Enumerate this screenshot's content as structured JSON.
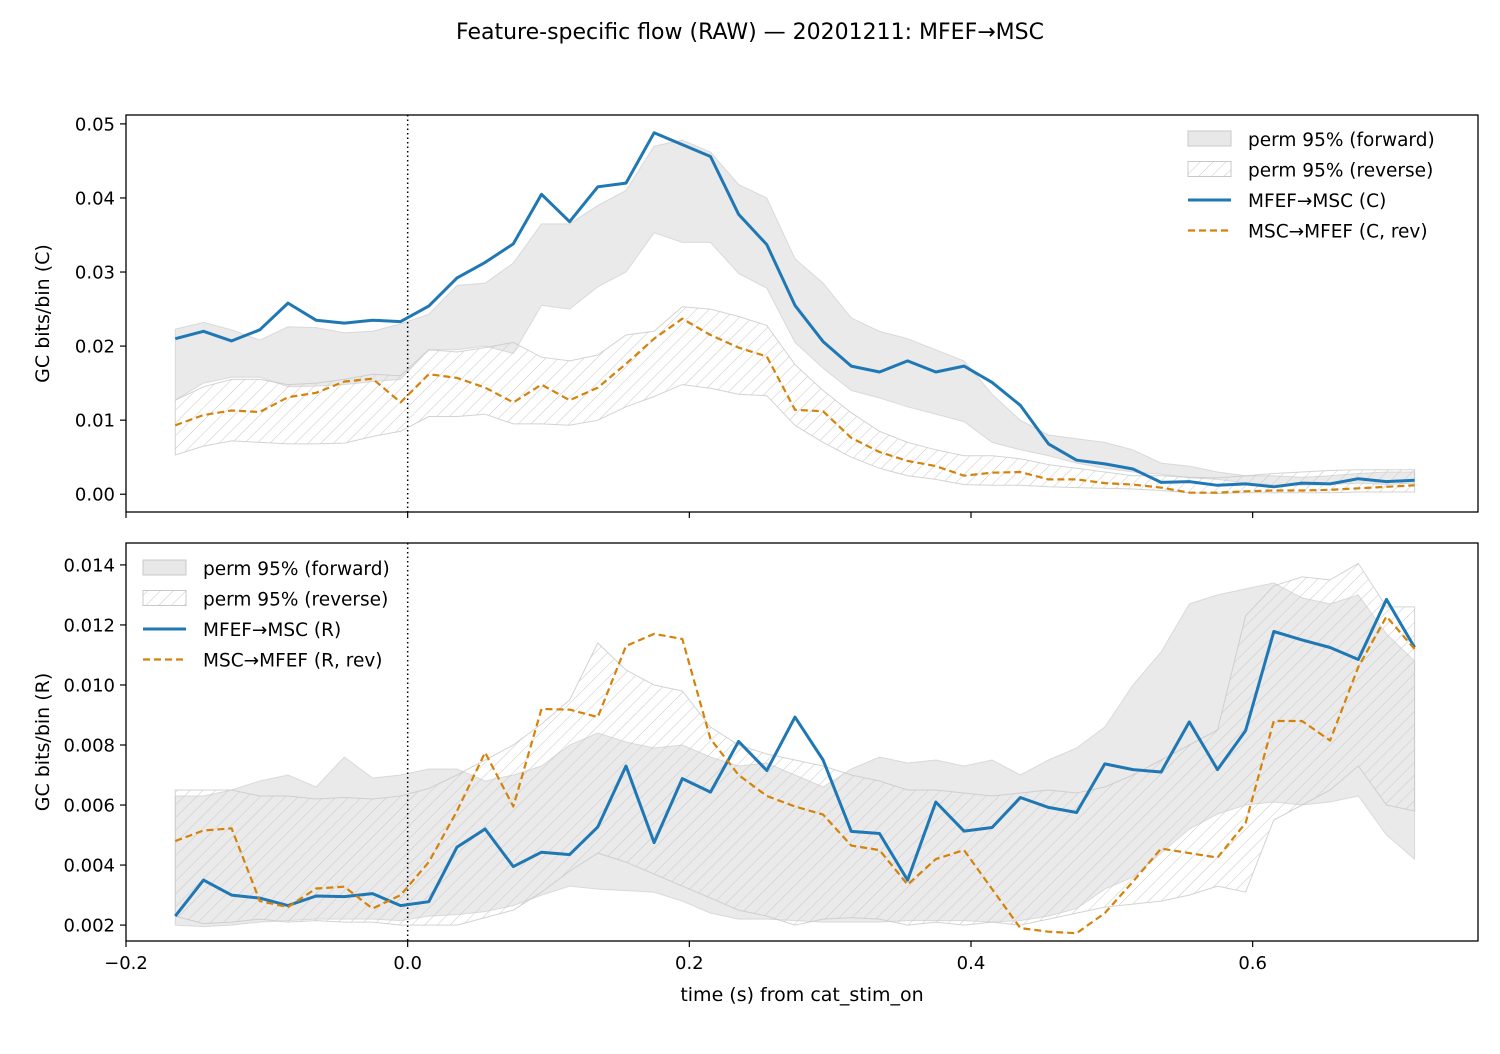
{
  "figure": {
    "title": "Feature-specific flow (RAW) — 20201211: MFEF→MSC"
  },
  "colors": {
    "forward_line": "#1f77b4",
    "reverse_line": "#d4820a",
    "band_fill": "#d9d9d9",
    "band_edge": "#c8c8c8",
    "hatch": "#c8c8c8"
  },
  "chart_data": [
    {
      "type": "line",
      "ylabel": "GC bits/bin (C)",
      "xlabel": "",
      "xlim": [
        -0.2,
        0.76
      ],
      "ylim": [
        -0.0024,
        0.0512
      ],
      "xticks": [
        -0.2,
        0.0,
        0.2,
        0.4,
        0.6
      ],
      "xtick_labels": [
        "",
        "",
        "",
        "",
        ""
      ],
      "yticks": [
        0.0,
        0.01,
        0.02,
        0.03,
        0.04,
        0.05
      ],
      "ytick_labels": [
        "0.00",
        "0.01",
        "0.02",
        "0.03",
        "0.04",
        "0.05"
      ],
      "vline_x": 0.0,
      "legend_position": "upper-right",
      "x": [
        -0.165,
        -0.145,
        -0.125,
        -0.105,
        -0.085,
        -0.065,
        -0.045,
        -0.025,
        -0.005,
        0.015,
        0.035,
        0.055,
        0.075,
        0.095,
        0.115,
        0.135,
        0.155,
        0.175,
        0.195,
        0.215,
        0.235,
        0.255,
        0.275,
        0.295,
        0.315,
        0.335,
        0.355,
        0.375,
        0.395,
        0.415,
        0.435,
        0.455,
        0.475,
        0.495,
        0.515,
        0.535,
        0.555,
        0.575,
        0.595,
        0.615,
        0.635,
        0.655,
        0.675,
        0.695,
        0.715
      ],
      "series": [
        {
          "name": "MFEF→MSC (C)",
          "style": "solid",
          "values": [
            0.021,
            0.022,
            0.0207,
            0.0222,
            0.0258,
            0.0235,
            0.0231,
            0.0235,
            0.0233,
            0.0254,
            0.0292,
            0.0313,
            0.0338,
            0.0405,
            0.0368,
            0.0415,
            0.042,
            0.0488,
            0.0472,
            0.0456,
            0.0378,
            0.0337,
            0.0255,
            0.0206,
            0.0173,
            0.0165,
            0.018,
            0.0165,
            0.0173,
            0.0151,
            0.012,
            0.0068,
            0.0046,
            0.0041,
            0.0034,
            0.0016,
            0.0017,
            0.0012,
            0.0014,
            0.001,
            0.0015,
            0.0014,
            0.0021,
            0.0017,
            0.0019
          ]
        },
        {
          "name": "MSC→MFEF (C, rev)",
          "style": "dashed",
          "values": [
            0.0093,
            0.0107,
            0.0113,
            0.0111,
            0.0131,
            0.0137,
            0.0152,
            0.0156,
            0.0124,
            0.0162,
            0.0157,
            0.0144,
            0.0124,
            0.0148,
            0.0127,
            0.0144,
            0.0176,
            0.021,
            0.0237,
            0.0215,
            0.0198,
            0.0186,
            0.0114,
            0.0112,
            0.0076,
            0.0057,
            0.0045,
            0.0038,
            0.0025,
            0.0029,
            0.003,
            0.002,
            0.002,
            0.0015,
            0.0013,
            0.0009,
            0.0002,
            0.0002,
            0.0004,
            0.0005,
            0.0005,
            0.0006,
            0.0008,
            0.001,
            0.0012
          ]
        }
      ],
      "bands": [
        {
          "name": "perm 95% (forward)",
          "fill": "solid",
          "lower": [
            0.0127,
            0.015,
            0.0158,
            0.0158,
            0.0145,
            0.0146,
            0.0148,
            0.0152,
            0.0155,
            0.0195,
            0.0195,
            0.02,
            0.019,
            0.0255,
            0.025,
            0.028,
            0.03,
            0.0353,
            0.034,
            0.034,
            0.0298,
            0.0278,
            0.0205,
            0.017,
            0.014,
            0.013,
            0.0118,
            0.0108,
            0.0098,
            0.007,
            0.006,
            0.0052,
            0.0042,
            0.0035,
            0.003,
            0.0027,
            0.0022,
            0.002,
            0.0015,
            0.0013,
            0.0012,
            0.0013,
            0.0015,
            0.0013,
            0.0015
          ],
          "upper": [
            0.0223,
            0.0232,
            0.0222,
            0.0208,
            0.0226,
            0.0225,
            0.0218,
            0.022,
            0.023,
            0.0243,
            0.0282,
            0.0285,
            0.0312,
            0.0365,
            0.0365,
            0.039,
            0.041,
            0.047,
            0.0478,
            0.0462,
            0.0418,
            0.04,
            0.0318,
            0.0285,
            0.0238,
            0.022,
            0.021,
            0.0195,
            0.018,
            0.0135,
            0.01,
            0.008,
            0.0075,
            0.007,
            0.006,
            0.0042,
            0.0038,
            0.003,
            0.0025,
            0.0025,
            0.0023,
            0.0025,
            0.0028,
            0.003,
            0.003
          ]
        },
        {
          "name": "perm 95% (reverse)",
          "fill": "hatch",
          "lower": [
            0.0053,
            0.0065,
            0.0072,
            0.007,
            0.0068,
            0.0068,
            0.0069,
            0.0078,
            0.0085,
            0.0105,
            0.0105,
            0.0108,
            0.0095,
            0.0095,
            0.0093,
            0.01,
            0.0118,
            0.0132,
            0.0148,
            0.0143,
            0.0135,
            0.0133,
            0.0093,
            0.007,
            0.005,
            0.0035,
            0.0025,
            0.002,
            0.0013,
            0.0012,
            0.0012,
            0.001,
            0.0009,
            0.0008,
            0.0007,
            0.0005,
            0.0002,
            0.0001,
            0.0002,
            0.0002,
            0.0002,
            0.0002,
            0.0003,
            0.0003,
            0.0003
          ],
          "upper": [
            0.0127,
            0.0145,
            0.0155,
            0.0155,
            0.0148,
            0.015,
            0.0155,
            0.0162,
            0.016,
            0.0195,
            0.0192,
            0.0198,
            0.0205,
            0.0185,
            0.018,
            0.0188,
            0.0215,
            0.022,
            0.0253,
            0.025,
            0.024,
            0.0228,
            0.0175,
            0.014,
            0.011,
            0.0085,
            0.007,
            0.006,
            0.0052,
            0.0052,
            0.0048,
            0.004,
            0.0035,
            0.003,
            0.0025,
            0.0025,
            0.0023,
            0.0022,
            0.0025,
            0.0028,
            0.003,
            0.0032,
            0.0033,
            0.0033,
            0.0033
          ]
        }
      ]
    },
    {
      "type": "line",
      "ylabel": "GC bits/bin (R)",
      "xlabel": "time (s) from cat_stim_on",
      "xlim": [
        -0.2,
        0.76
      ],
      "ylim": [
        0.00147,
        0.01473
      ],
      "xticks": [
        -0.2,
        0.0,
        0.2,
        0.4,
        0.6
      ],
      "xtick_labels": [
        "−0.2",
        "0.0",
        "0.2",
        "0.4",
        "0.6"
      ],
      "yticks": [
        0.002,
        0.004,
        0.006,
        0.008,
        0.01,
        0.012,
        0.014
      ],
      "ytick_labels": [
        "0.002",
        "0.004",
        "0.006",
        "0.008",
        "0.010",
        "0.012",
        "0.014"
      ],
      "vline_x": 0.0,
      "legend_position": "upper-left",
      "x": [
        -0.165,
        -0.145,
        -0.125,
        -0.105,
        -0.085,
        -0.065,
        -0.045,
        -0.025,
        -0.005,
        0.015,
        0.035,
        0.055,
        0.075,
        0.095,
        0.115,
        0.135,
        0.155,
        0.175,
        0.195,
        0.215,
        0.235,
        0.255,
        0.275,
        0.295,
        0.315,
        0.335,
        0.355,
        0.375,
        0.395,
        0.415,
        0.435,
        0.455,
        0.475,
        0.495,
        0.515,
        0.535,
        0.555,
        0.575,
        0.595,
        0.615,
        0.635,
        0.655,
        0.675,
        0.695,
        0.715
      ],
      "series": [
        {
          "name": "MFEF→MSC (R)",
          "style": "solid",
          "values": [
            0.0023,
            0.0035,
            0.003,
            0.0029,
            0.00265,
            0.00297,
            0.00295,
            0.00305,
            0.00265,
            0.00278,
            0.0046,
            0.0052,
            0.00395,
            0.00443,
            0.00435,
            0.00527,
            0.0073,
            0.00475,
            0.00688,
            0.00643,
            0.00812,
            0.00715,
            0.00893,
            0.0075,
            0.00512,
            0.00505,
            0.0035,
            0.0061,
            0.00513,
            0.00525,
            0.00625,
            0.00592,
            0.00575,
            0.00737,
            0.00718,
            0.0071,
            0.00877,
            0.00718,
            0.00848,
            0.01178,
            0.0115,
            0.01125,
            0.01085,
            0.01285,
            0.01125
          ]
        },
        {
          "name": "MSC→MFEF (R, rev)",
          "style": "dashed",
          "values": [
            0.0048,
            0.00515,
            0.00522,
            0.0028,
            0.0026,
            0.00322,
            0.00328,
            0.00255,
            0.003,
            0.0041,
            0.0058,
            0.00775,
            0.00595,
            0.0092,
            0.00918,
            0.00893,
            0.0113,
            0.0117,
            0.01153,
            0.0082,
            0.007,
            0.0063,
            0.00595,
            0.00568,
            0.00465,
            0.0045,
            0.00335,
            0.0042,
            0.0045,
            0.0032,
            0.0019,
            0.00178,
            0.00173,
            0.0024,
            0.00345,
            0.00455,
            0.0044,
            0.00425,
            0.0054,
            0.0088,
            0.0088,
            0.00815,
            0.0106,
            0.01228,
            0.0112
          ]
        }
      ],
      "bands": [
        {
          "name": "perm 95% (forward)",
          "fill": "solid",
          "lower": [
            0.002,
            0.00195,
            0.002,
            0.0021,
            0.00215,
            0.0022,
            0.0022,
            0.0022,
            0.00215,
            0.0023,
            0.00235,
            0.00245,
            0.00265,
            0.003,
            0.0033,
            0.0032,
            0.00315,
            0.0031,
            0.0028,
            0.0024,
            0.0022,
            0.0022,
            0.00215,
            0.0021,
            0.0021,
            0.0021,
            0.00215,
            0.00215,
            0.00215,
            0.0021,
            0.00215,
            0.0023,
            0.00255,
            0.0032,
            0.0036,
            0.0044,
            0.0052,
            0.0057,
            0.006,
            0.0061,
            0.006,
            0.0061,
            0.0063,
            0.005,
            0.0042
          ],
          "upper": [
            0.0063,
            0.0063,
            0.0065,
            0.0068,
            0.007,
            0.0066,
            0.0076,
            0.0069,
            0.007,
            0.0072,
            0.0072,
            0.0068,
            0.007,
            0.0073,
            0.008,
            0.0084,
            0.0081,
            0.0079,
            0.008,
            0.0076,
            0.0073,
            0.0074,
            0.007,
            0.0066,
            0.0072,
            0.0076,
            0.0074,
            0.0075,
            0.0073,
            0.0075,
            0.007,
            0.0075,
            0.0079,
            0.0086,
            0.01,
            0.0111,
            0.0127,
            0.013,
            0.0132,
            0.0134,
            0.0129,
            0.0127,
            0.013,
            0.0117,
            0.0108
          ]
        },
        {
          "name": "perm 95% (reverse)",
          "fill": "hatch",
          "lower": [
            0.0023,
            0.00205,
            0.0021,
            0.0022,
            0.0021,
            0.00215,
            0.0021,
            0.0021,
            0.002,
            0.002,
            0.002,
            0.00225,
            0.0025,
            0.0031,
            0.0038,
            0.0044,
            0.0041,
            0.0037,
            0.0033,
            0.0029,
            0.0025,
            0.0023,
            0.002,
            0.0022,
            0.00225,
            0.0022,
            0.002,
            0.0021,
            0.002,
            0.0021,
            0.002,
            0.0022,
            0.0024,
            0.0026,
            0.0027,
            0.0028,
            0.003,
            0.0033,
            0.0031,
            0.0055,
            0.006,
            0.0065,
            0.0073,
            0.006,
            0.0058
          ],
          "upper": [
            0.0065,
            0.0065,
            0.0065,
            0.0063,
            0.0063,
            0.0062,
            0.00625,
            0.0062,
            0.0063,
            0.00655,
            0.007,
            0.0075,
            0.008,
            0.0087,
            0.0095,
            0.0114,
            0.0105,
            0.01,
            0.0098,
            0.0086,
            0.008,
            0.0077,
            0.0075,
            0.0073,
            0.007,
            0.0068,
            0.0065,
            0.0065,
            0.0064,
            0.0063,
            0.0064,
            0.0065,
            0.0064,
            0.0066,
            0.007,
            0.0075,
            0.008,
            0.0085,
            0.0123,
            0.0133,
            0.0136,
            0.0135,
            0.01405,
            0.0126,
            0.0126
          ]
        }
      ]
    }
  ]
}
